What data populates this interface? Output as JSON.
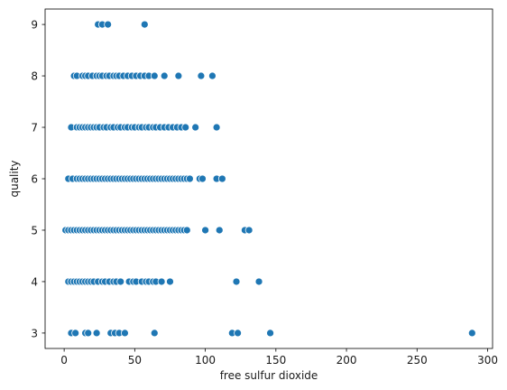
{
  "chart_data": {
    "type": "scatter",
    "title": "",
    "xlabel": "free sulfur dioxide",
    "ylabel": "quality",
    "xlim": [
      -13.5,
      303.5
    ],
    "ylim": [
      2.7,
      9.3
    ],
    "xticks": [
      0,
      50,
      100,
      150,
      200,
      250,
      300
    ],
    "yticks": [
      3,
      4,
      5,
      6,
      7,
      8,
      9
    ],
    "grid": false,
    "marker_color": "#1f77b4",
    "marker_edge_color": "#ffffff",
    "series": [
      {
        "points": [
          [
            24,
            9
          ],
          [
            27,
            9
          ],
          [
            31,
            9
          ],
          [
            57,
            9
          ],
          [
            7,
            8
          ],
          [
            9,
            8
          ],
          [
            13,
            8
          ],
          [
            15,
            8
          ],
          [
            17,
            8
          ],
          [
            20,
            8
          ],
          [
            23,
            8
          ],
          [
            25,
            8
          ],
          [
            27,
            8
          ],
          [
            30,
            8
          ],
          [
            32,
            8
          ],
          [
            35,
            8
          ],
          [
            37,
            8
          ],
          [
            39,
            8
          ],
          [
            42,
            8
          ],
          [
            45,
            8
          ],
          [
            48,
            8
          ],
          [
            51,
            8
          ],
          [
            54,
            8
          ],
          [
            57,
            8
          ],
          [
            60,
            8
          ],
          [
            64,
            8
          ],
          [
            71,
            8
          ],
          [
            81,
            8
          ],
          [
            97,
            8
          ],
          [
            105,
            8
          ],
          [
            5,
            7
          ],
          [
            9,
            7
          ],
          [
            11,
            7
          ],
          [
            13,
            7
          ],
          [
            15,
            7
          ],
          [
            17,
            7
          ],
          [
            19,
            7
          ],
          [
            21,
            7
          ],
          [
            23,
            7
          ],
          [
            25,
            7
          ],
          [
            28,
            7
          ],
          [
            30,
            7
          ],
          [
            33,
            7
          ],
          [
            35,
            7
          ],
          [
            38,
            7
          ],
          [
            40,
            7
          ],
          [
            43,
            7
          ],
          [
            45,
            7
          ],
          [
            48,
            7
          ],
          [
            50,
            7
          ],
          [
            53,
            7
          ],
          [
            55,
            7
          ],
          [
            58,
            7
          ],
          [
            60,
            7
          ],
          [
            63,
            7
          ],
          [
            65,
            7
          ],
          [
            68,
            7
          ],
          [
            71,
            7
          ],
          [
            74,
            7
          ],
          [
            77,
            7
          ],
          [
            80,
            7
          ],
          [
            83,
            7
          ],
          [
            86,
            7
          ],
          [
            93,
            7
          ],
          [
            108,
            7
          ],
          [
            3,
            6
          ],
          [
            6,
            6
          ],
          [
            9,
            6
          ],
          [
            11,
            6
          ],
          [
            13,
            6
          ],
          [
            15,
            6
          ],
          [
            17,
            6
          ],
          [
            19,
            6
          ],
          [
            21,
            6
          ],
          [
            23,
            6
          ],
          [
            25,
            6
          ],
          [
            27,
            6
          ],
          [
            29,
            6
          ],
          [
            31,
            6
          ],
          [
            33,
            6
          ],
          [
            35,
            6
          ],
          [
            37,
            6
          ],
          [
            39,
            6
          ],
          [
            41,
            6
          ],
          [
            43,
            6
          ],
          [
            45,
            6
          ],
          [
            47,
            6
          ],
          [
            49,
            6
          ],
          [
            51,
            6
          ],
          [
            53,
            6
          ],
          [
            55,
            6
          ],
          [
            57,
            6
          ],
          [
            59,
            6
          ],
          [
            61,
            6
          ],
          [
            63,
            6
          ],
          [
            65,
            6
          ],
          [
            67,
            6
          ],
          [
            69,
            6
          ],
          [
            71,
            6
          ],
          [
            73,
            6
          ],
          [
            75,
            6
          ],
          [
            77,
            6
          ],
          [
            79,
            6
          ],
          [
            81,
            6
          ],
          [
            83,
            6
          ],
          [
            85,
            6
          ],
          [
            87,
            6
          ],
          [
            89,
            6
          ],
          [
            96,
            6
          ],
          [
            98,
            6
          ],
          [
            108,
            6
          ],
          [
            112,
            6
          ],
          [
            1,
            5
          ],
          [
            3,
            5
          ],
          [
            5,
            5
          ],
          [
            7,
            5
          ],
          [
            9,
            5
          ],
          [
            11,
            5
          ],
          [
            13,
            5
          ],
          [
            15,
            5
          ],
          [
            17,
            5
          ],
          [
            19,
            5
          ],
          [
            21,
            5
          ],
          [
            23,
            5
          ],
          [
            25,
            5
          ],
          [
            27,
            5
          ],
          [
            29,
            5
          ],
          [
            31,
            5
          ],
          [
            33,
            5
          ],
          [
            35,
            5
          ],
          [
            37,
            5
          ],
          [
            39,
            5
          ],
          [
            41,
            5
          ],
          [
            43,
            5
          ],
          [
            45,
            5
          ],
          [
            47,
            5
          ],
          [
            49,
            5
          ],
          [
            51,
            5
          ],
          [
            53,
            5
          ],
          [
            55,
            5
          ],
          [
            57,
            5
          ],
          [
            59,
            5
          ],
          [
            61,
            5
          ],
          [
            63,
            5
          ],
          [
            65,
            5
          ],
          [
            67,
            5
          ],
          [
            69,
            5
          ],
          [
            71,
            5
          ],
          [
            73,
            5
          ],
          [
            75,
            5
          ],
          [
            77,
            5
          ],
          [
            79,
            5
          ],
          [
            81,
            5
          ],
          [
            83,
            5
          ],
          [
            85,
            5
          ],
          [
            87,
            5
          ],
          [
            100,
            5
          ],
          [
            110,
            5
          ],
          [
            128,
            5
          ],
          [
            131,
            5
          ],
          [
            3,
            4
          ],
          [
            5,
            4
          ],
          [
            7,
            4
          ],
          [
            9,
            4
          ],
          [
            11,
            4
          ],
          [
            13,
            4
          ],
          [
            15,
            4
          ],
          [
            17,
            4
          ],
          [
            19,
            4
          ],
          [
            21,
            4
          ],
          [
            24,
            4
          ],
          [
            27,
            4
          ],
          [
            29,
            4
          ],
          [
            32,
            4
          ],
          [
            35,
            4
          ],
          [
            37,
            4
          ],
          [
            40,
            4
          ],
          [
            46,
            4
          ],
          [
            49,
            4
          ],
          [
            51,
            4
          ],
          [
            55,
            4
          ],
          [
            58,
            4
          ],
          [
            60,
            4
          ],
          [
            63,
            4
          ],
          [
            65,
            4
          ],
          [
            69,
            4
          ],
          [
            75,
            4
          ],
          [
            122,
            4
          ],
          [
            138,
            4
          ],
          [
            5,
            3
          ],
          [
            8,
            3
          ],
          [
            15,
            3
          ],
          [
            17,
            3
          ],
          [
            23,
            3
          ],
          [
            33,
            3
          ],
          [
            36,
            3
          ],
          [
            39,
            3
          ],
          [
            43,
            3
          ],
          [
            64,
            3
          ],
          [
            119,
            3
          ],
          [
            123,
            3
          ],
          [
            146,
            3
          ],
          [
            289,
            3
          ]
        ]
      }
    ]
  }
}
